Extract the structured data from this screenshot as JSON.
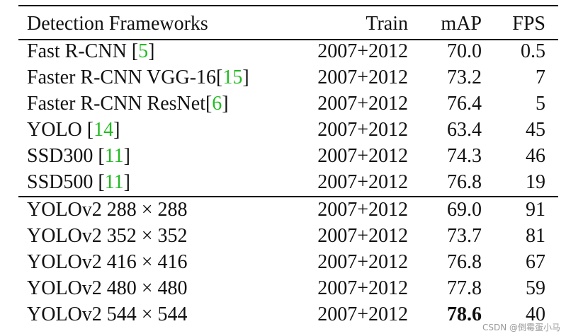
{
  "table": {
    "header": [
      "Detection Frameworks",
      "Train",
      "mAP",
      "FPS"
    ],
    "rows": [
      {
        "name": "Fast R-CNN [",
        "ref": "5",
        "close": "]",
        "train": "2007+2012",
        "map": "70.0",
        "fps": "0.5"
      },
      {
        "name": "Faster R-CNN VGG-16[",
        "ref": "15",
        "close": "]",
        "train": "2007+2012",
        "map": "73.2",
        "fps": "7"
      },
      {
        "name": "Faster R-CNN ResNet[",
        "ref": "6",
        "close": "]",
        "train": "2007+2012",
        "map": "76.4",
        "fps": "5"
      },
      {
        "name": "YOLO [",
        "ref": "14",
        "close": "]",
        "train": "2007+2012",
        "map": "63.4",
        "fps": "45"
      },
      {
        "name": "SSD300 [",
        "ref": "11",
        "close": "]",
        "train": "2007+2012",
        "map": "74.3",
        "fps": "46"
      },
      {
        "name": "SSD500 [",
        "ref": "11",
        "close": "]",
        "train": "2007+2012",
        "map": "76.8",
        "fps": "19"
      },
      {
        "name": "YOLOv2 288 × 288",
        "train": "2007+2012",
        "map": "69.0",
        "fps": "91"
      },
      {
        "name": "YOLOv2 352 × 352",
        "train": "2007+2012",
        "map": "73.7",
        "fps": "81"
      },
      {
        "name": "YOLOv2 416 × 416",
        "train": "2007+2012",
        "map": "76.8",
        "fps": "67"
      },
      {
        "name": "YOLOv2 480 × 480",
        "train": "2007+2012",
        "map": "77.8",
        "fps": "59"
      },
      {
        "name": "YOLOv2 544 × 544",
        "train": "2007+2012",
        "map": "78.6",
        "fps": "40",
        "map_bold": true
      }
    ]
  },
  "watermark": "CSDN @倒霉蛋小马"
}
